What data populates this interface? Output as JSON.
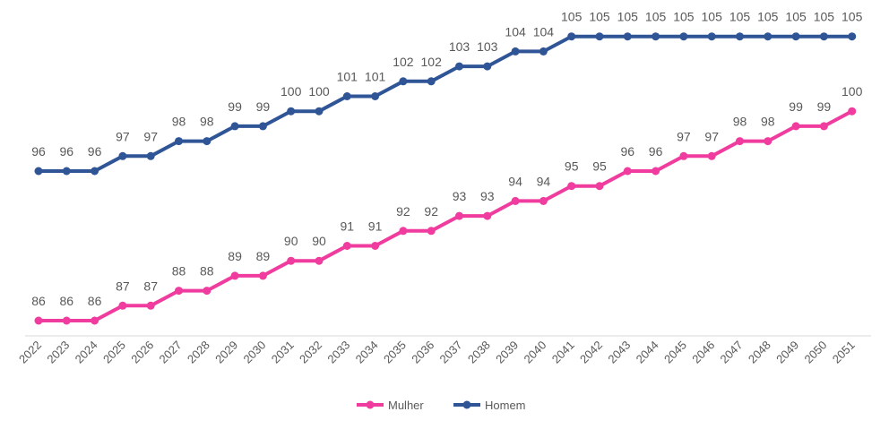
{
  "chart_data": {
    "type": "line",
    "title": "",
    "xlabel": "",
    "ylabel": "",
    "ylim": [
      80,
      107
    ],
    "grid": false,
    "legend_position": "bottom",
    "categories": [
      "2022",
      "2023",
      "2024",
      "2025",
      "2026",
      "2027",
      "2028",
      "2029",
      "2030",
      "2031",
      "2032",
      "2033",
      "2034",
      "2035",
      "2036",
      "2037",
      "2038",
      "2039",
      "2040",
      "2041",
      "2042",
      "2043",
      "2044",
      "2045",
      "2046",
      "2047",
      "2048",
      "2049",
      "2050",
      "2051"
    ],
    "series": [
      {
        "name": "Mulher",
        "color": "#ef3c9e",
        "values": [
          86,
          86,
          86,
          87,
          87,
          88,
          88,
          89,
          89,
          90,
          90,
          91,
          91,
          92,
          92,
          93,
          93,
          94,
          94,
          95,
          95,
          96,
          96,
          97,
          97,
          98,
          98,
          99,
          99,
          100
        ]
      },
      {
        "name": "Homem",
        "color": "#2f5597",
        "values": [
          96,
          96,
          96,
          97,
          97,
          98,
          98,
          99,
          99,
          100,
          100,
          101,
          101,
          102,
          102,
          103,
          103,
          104,
          104,
          105,
          105,
          105,
          105,
          105,
          105,
          105,
          105,
          105,
          105,
          105
        ]
      }
    ]
  }
}
